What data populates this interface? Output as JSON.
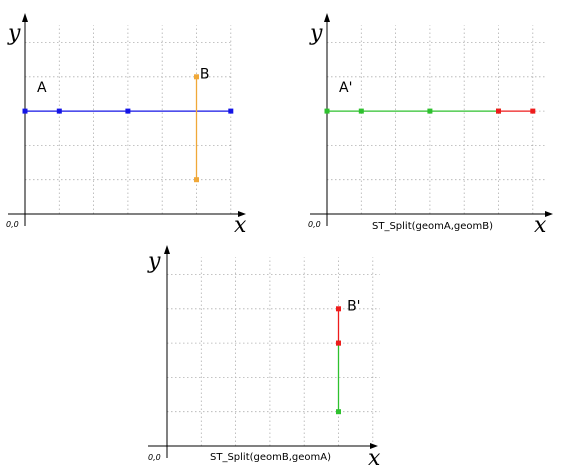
{
  "axis": {
    "x_label": "x",
    "y_label": "y",
    "origin_label": "0,0"
  },
  "colors": {
    "blue": "#1515e6",
    "orange": "#f0a838",
    "green": "#2ec12e",
    "red": "#ee1c1c",
    "grid": "#b0b0b0"
  },
  "panels": [
    {
      "id": "original",
      "caption": "",
      "labels": [
        {
          "text": "A",
          "at": [
            0.35,
            3.55
          ]
        },
        {
          "text": "B",
          "at": [
            5.1,
            3.95
          ]
        }
      ],
      "lines": [
        {
          "color": "blue",
          "points": [
            [
              0,
              3
            ],
            [
              1,
              3
            ],
            [
              3,
              3
            ],
            [
              6,
              3
            ]
          ]
        },
        {
          "color": "orange",
          "points": [
            [
              5,
              1
            ],
            [
              5,
              4
            ]
          ]
        }
      ]
    },
    {
      "id": "split-a-by-b",
      "caption": "ST_Split(geomA,geomB)",
      "labels": [
        {
          "text": "A'",
          "at": [
            0.35,
            3.55
          ]
        }
      ],
      "lines": [
        {
          "color": "green",
          "points": [
            [
              0,
              3
            ],
            [
              1,
              3
            ],
            [
              3,
              3
            ],
            [
              5,
              3
            ]
          ]
        },
        {
          "color": "red",
          "points": [
            [
              5,
              3
            ],
            [
              6,
              3
            ]
          ]
        }
      ]
    },
    {
      "id": "split-b-by-a",
      "caption": "ST_Split(geomB,geomA)",
      "labels": [
        {
          "text": "B'",
          "at": [
            5.25,
            3.95
          ]
        }
      ],
      "lines": [
        {
          "color": "green",
          "points": [
            [
              5,
              1
            ],
            [
              5,
              3
            ]
          ]
        },
        {
          "color": "red",
          "points": [
            [
              5,
              3
            ],
            [
              5,
              4
            ]
          ]
        }
      ]
    }
  ]
}
